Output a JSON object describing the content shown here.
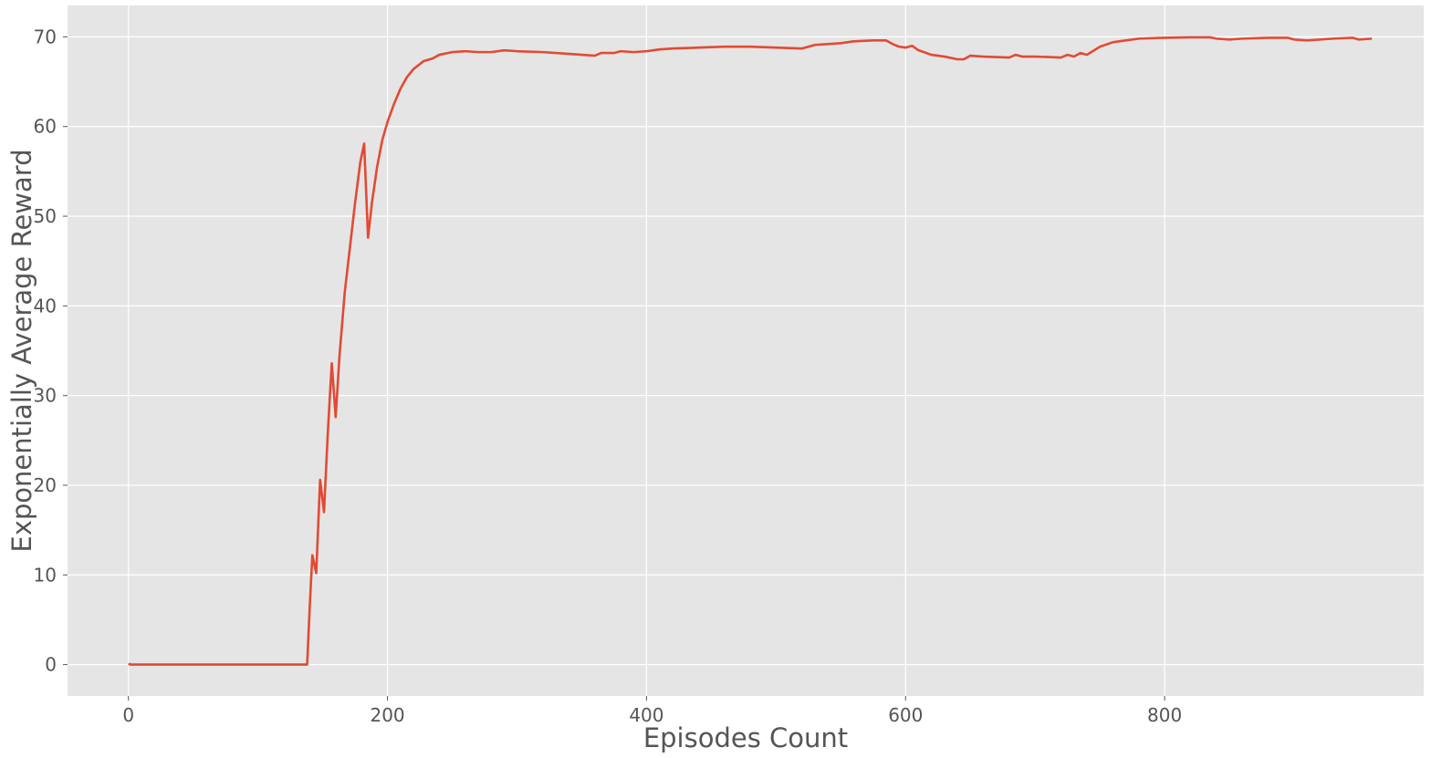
{
  "chart_data": {
    "type": "line",
    "title": "",
    "xlabel": "Episodes Count",
    "ylabel": "Exponentially Average Reward",
    "xlim": [
      -47,
      1000
    ],
    "ylim": [
      -3.5,
      73.5
    ],
    "x_ticks": [
      0,
      200,
      400,
      600,
      800
    ],
    "y_ticks": [
      0,
      10,
      20,
      30,
      40,
      50,
      60,
      70
    ],
    "grid": true,
    "background_color": "#e5e5e5",
    "grid_color": "#ffffff",
    "line_color": "#e24a33",
    "series": [
      {
        "points": [
          [
            0,
            0.1
          ],
          [
            2,
            0
          ],
          [
            10,
            0
          ],
          [
            20,
            0
          ],
          [
            40,
            0
          ],
          [
            60,
            0
          ],
          [
            80,
            0
          ],
          [
            100,
            0
          ],
          [
            120,
            0
          ],
          [
            138,
            0
          ],
          [
            140,
            6.5
          ],
          [
            142,
            12.2
          ],
          [
            145,
            10.2
          ],
          [
            148,
            20.6
          ],
          [
            151,
            17.0
          ],
          [
            154,
            26.0
          ],
          [
            157,
            33.6
          ],
          [
            160,
            27.6
          ],
          [
            163,
            34.5
          ],
          [
            167,
            41.5
          ],
          [
            171,
            46.5
          ],
          [
            175,
            51.5
          ],
          [
            179,
            56.0
          ],
          [
            182,
            58.1
          ],
          [
            185,
            47.6
          ],
          [
            188,
            51.5
          ],
          [
            192,
            55.5
          ],
          [
            196,
            58.5
          ],
          [
            200,
            60.5
          ],
          [
            205,
            62.5
          ],
          [
            210,
            64.2
          ],
          [
            215,
            65.5
          ],
          [
            220,
            66.4
          ],
          [
            228,
            67.3
          ],
          [
            235,
            67.6
          ],
          [
            240,
            68.0
          ],
          [
            250,
            68.3
          ],
          [
            260,
            68.4
          ],
          [
            270,
            68.3
          ],
          [
            280,
            68.3
          ],
          [
            290,
            68.5
          ],
          [
            300,
            68.4
          ],
          [
            320,
            68.3
          ],
          [
            340,
            68.1
          ],
          [
            350,
            68.0
          ],
          [
            360,
            67.9
          ],
          [
            365,
            68.2
          ],
          [
            375,
            68.2
          ],
          [
            380,
            68.4
          ],
          [
            390,
            68.3
          ],
          [
            400,
            68.4
          ],
          [
            410,
            68.6
          ],
          [
            420,
            68.7
          ],
          [
            440,
            68.8
          ],
          [
            460,
            68.9
          ],
          [
            480,
            68.9
          ],
          [
            500,
            68.8
          ],
          [
            520,
            68.7
          ],
          [
            530,
            69.1
          ],
          [
            540,
            69.2
          ],
          [
            550,
            69.3
          ],
          [
            560,
            69.5
          ],
          [
            575,
            69.6
          ],
          [
            585,
            69.6
          ],
          [
            590,
            69.2
          ],
          [
            595,
            68.9
          ],
          [
            600,
            68.8
          ],
          [
            605,
            69.0
          ],
          [
            610,
            68.5
          ],
          [
            620,
            68.0
          ],
          [
            630,
            67.8
          ],
          [
            640,
            67.5
          ],
          [
            645,
            67.5
          ],
          [
            650,
            67.9
          ],
          [
            660,
            67.8
          ],
          [
            680,
            67.7
          ],
          [
            685,
            68.0
          ],
          [
            690,
            67.8
          ],
          [
            700,
            67.8
          ],
          [
            720,
            67.7
          ],
          [
            725,
            68.0
          ],
          [
            730,
            67.8
          ],
          [
            735,
            68.2
          ],
          [
            740,
            68.0
          ],
          [
            750,
            68.9
          ],
          [
            760,
            69.4
          ],
          [
            770,
            69.6
          ],
          [
            780,
            69.8
          ],
          [
            800,
            69.9
          ],
          [
            820,
            69.95
          ],
          [
            835,
            69.95
          ],
          [
            840,
            69.8
          ],
          [
            850,
            69.7
          ],
          [
            860,
            69.8
          ],
          [
            880,
            69.9
          ],
          [
            895,
            69.9
          ],
          [
            900,
            69.7
          ],
          [
            910,
            69.6
          ],
          [
            920,
            69.7
          ],
          [
            930,
            69.8
          ],
          [
            945,
            69.9
          ],
          [
            950,
            69.7
          ],
          [
            960,
            69.8
          ]
        ]
      }
    ]
  }
}
